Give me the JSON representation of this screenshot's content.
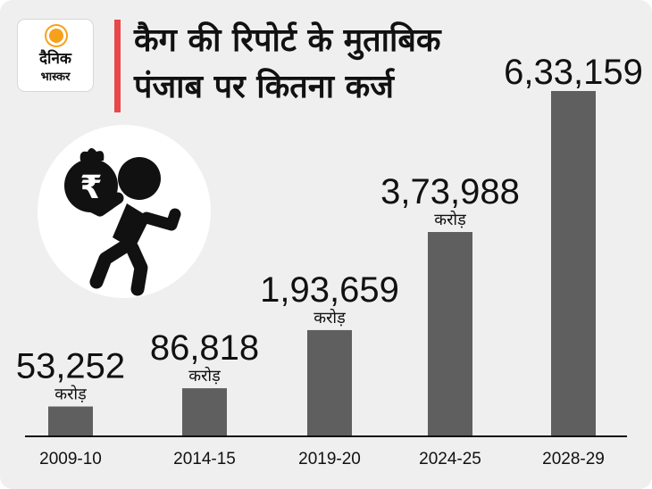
{
  "brand": {
    "logo_line1": "दैनिक",
    "logo_line2": "भास्कर"
  },
  "title": {
    "line1": "कैग की रिपोर्ट के मुताबिक",
    "line2": "पंजाब पर कितना कर्ज"
  },
  "illustration": {
    "icon": "man-carrying-rupee-money-bag-icon",
    "symbol": "₹"
  },
  "colors": {
    "bar": "#5f5f5f",
    "accent": "#e8484a",
    "background": "#efefef",
    "logo_sun": "#f7a11a"
  },
  "chart_data": {
    "type": "bar",
    "title": "",
    "categories": [
      "2009-10",
      "2014-15",
      "2019-20",
      "2024-25",
      "2028-29"
    ],
    "values": [
      53252,
      86818,
      193659,
      373988,
      633159
    ],
    "value_labels": [
      "53,252",
      "86,818",
      "1,93,659",
      "3,73,988",
      "6,33,159"
    ],
    "unit_labels": [
      "करोड़",
      "करोड़",
      "करोड़",
      "करोड़",
      ""
    ],
    "ylim": [
      0,
      633159
    ],
    "grid": false,
    "legend": "none"
  }
}
